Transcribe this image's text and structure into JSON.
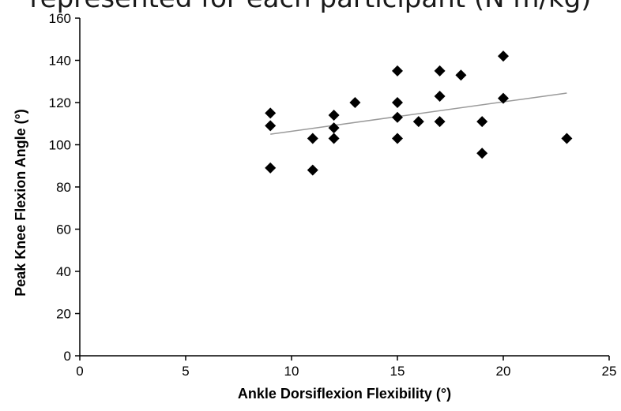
{
  "caption": "represented for each participant (N·m/kg)",
  "chart_data": {
    "type": "scatter",
    "title": "",
    "xlabel": "Ankle Dorsiflexion Flexibility (°)",
    "ylabel": "Peak Knee Flexion Angle (°)",
    "xlim": [
      0,
      25
    ],
    "ylim": [
      0,
      160
    ],
    "xticks": [
      0,
      5,
      10,
      15,
      20,
      25
    ],
    "yticks": [
      0,
      20,
      40,
      60,
      80,
      100,
      120,
      140,
      160
    ],
    "grid": false,
    "marker": "diamond",
    "points": [
      {
        "x": 9,
        "y": 115
      },
      {
        "x": 9,
        "y": 109
      },
      {
        "x": 9,
        "y": 89
      },
      {
        "x": 11,
        "y": 103
      },
      {
        "x": 11,
        "y": 88
      },
      {
        "x": 12,
        "y": 114
      },
      {
        "x": 12,
        "y": 108
      },
      {
        "x": 12,
        "y": 103
      },
      {
        "x": 13,
        "y": 120
      },
      {
        "x": 15,
        "y": 135
      },
      {
        "x": 15,
        "y": 120
      },
      {
        "x": 15,
        "y": 113
      },
      {
        "x": 15,
        "y": 103
      },
      {
        "x": 16,
        "y": 111
      },
      {
        "x": 17,
        "y": 135
      },
      {
        "x": 17,
        "y": 123
      },
      {
        "x": 17,
        "y": 111
      },
      {
        "x": 18,
        "y": 133
      },
      {
        "x": 19,
        "y": 111
      },
      {
        "x": 19,
        "y": 96
      },
      {
        "x": 20,
        "y": 142
      },
      {
        "x": 20,
        "y": 122
      },
      {
        "x": 23,
        "y": 103
      }
    ],
    "trendline": {
      "x": [
        9,
        23
      ],
      "y": [
        105,
        124.5
      ]
    },
    "colors": {
      "marker": "#000000",
      "trendline": "#9a9a9a",
      "axis": "#000000"
    }
  }
}
